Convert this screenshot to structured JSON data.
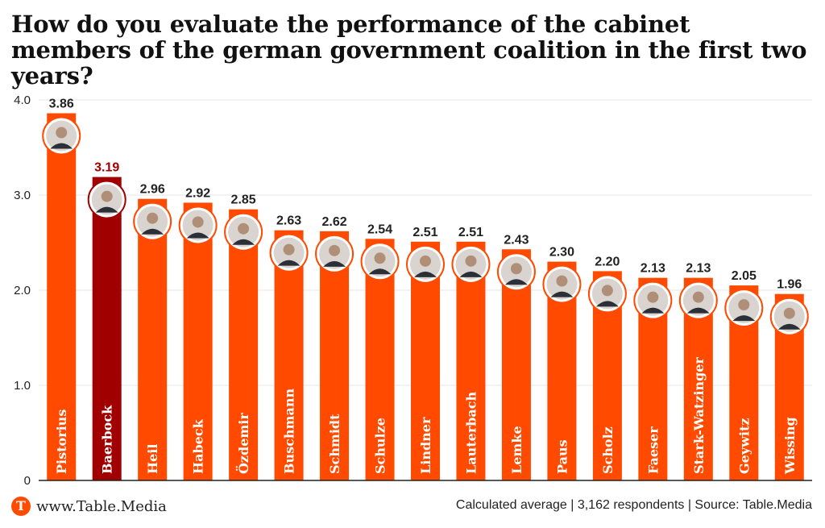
{
  "title": "How do you evaluate the performance of the cabinet members of the german government coalition in the first two years?",
  "footer": {
    "logo_letter": "T",
    "site": "www.Table.Media",
    "note": "Calculated average | 3,162 respondents | Source: Table.Media"
  },
  "colors": {
    "bar": "#ff4a00",
    "highlight_bar": "#a10000",
    "label_default": "#222222",
    "label_highlight": "#a10000",
    "grid": "#e6e6e6",
    "axis": "#222222"
  },
  "chart_data": {
    "type": "bar",
    "categories": [
      "Pistorius",
      "Baerbock",
      "Heil",
      "Habeck",
      "Özdemir",
      "Buschmann",
      "Schmidt",
      "Schulze",
      "Lindner",
      "Lauterbach",
      "Lemke",
      "Paus",
      "Scholz",
      "Faeser",
      "Stark-Watzinger",
      "Geywitz",
      "Wissing"
    ],
    "values": [
      3.86,
      3.19,
      2.96,
      2.92,
      2.85,
      2.63,
      2.62,
      2.54,
      2.51,
      2.51,
      2.43,
      2.3,
      2.2,
      2.13,
      2.13,
      2.05,
      1.96
    ],
    "value_labels": [
      "3.86",
      "3.19",
      "2.96",
      "2.92",
      "2.85",
      "2.63",
      "2.62",
      "2.54",
      "2.51",
      "2.51",
      "2.43",
      "2.30",
      "2.20",
      "2.13",
      "2.13",
      "2.05",
      "1.96"
    ],
    "highlight_index": 1,
    "ylim": [
      0,
      4.0
    ],
    "yticks": [
      0,
      1.0,
      2.0,
      3.0,
      4.0
    ],
    "ytick_labels": [
      "0",
      "1.0",
      "2.0",
      "3.0",
      "4.0"
    ],
    "grid": true,
    "xlabel": "",
    "ylabel": "",
    "avatar_icon": "portrait-photo"
  }
}
